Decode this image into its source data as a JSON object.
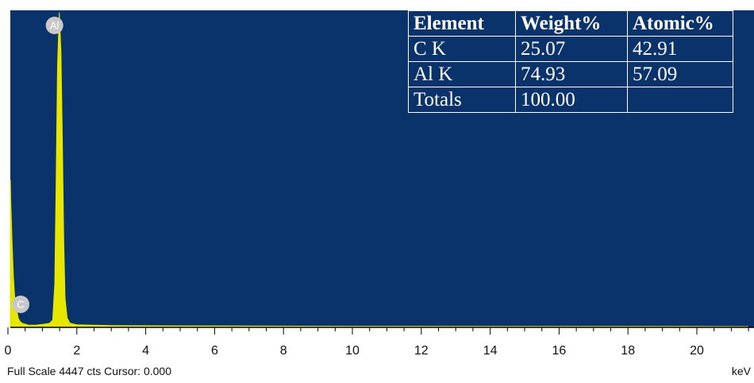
{
  "chart_data": {
    "type": "line",
    "title": "",
    "xlabel": "keV",
    "ylabel": "",
    "xlim": [
      0,
      21.5
    ],
    "ylim": [
      0,
      4447
    ],
    "x_ticks": [
      0,
      2,
      4,
      6,
      8,
      10,
      12,
      14,
      16,
      18,
      20
    ],
    "x_tick_labels": [
      "0",
      "2",
      "4",
      "6",
      "8",
      "10",
      "12",
      "14",
      "16",
      "18",
      "20"
    ],
    "series": [
      {
        "x": [
          0.0,
          0.04,
          0.08,
          0.12,
          0.16,
          0.2,
          0.24,
          0.28,
          0.3,
          0.34,
          0.38,
          0.42,
          0.5,
          0.6,
          0.8,
          1.0,
          1.2,
          1.3,
          1.36,
          1.4,
          1.44,
          1.49,
          1.54,
          1.58,
          1.62,
          1.66,
          1.72,
          1.8,
          2.0,
          3.0,
          5.0,
          10.0,
          15.0,
          20.0,
          21.5
        ],
        "values": [
          0,
          2080,
          1800,
          1200,
          700,
          380,
          250,
          170,
          120,
          80,
          60,
          45,
          35,
          20,
          20,
          30,
          45,
          90,
          600,
          2100,
          3700,
          4447,
          3900,
          2600,
          1200,
          400,
          120,
          50,
          25,
          15,
          10,
          5,
          3,
          2,
          0
        ]
      }
    ],
    "peaks": [
      {
        "label": "Al",
        "energy": 1.49
      },
      {
        "label": "C",
        "energy": 0.28
      }
    ]
  },
  "results_table": {
    "headers": [
      "Element",
      "Weight%",
      "Atomic%"
    ],
    "rows": [
      [
        "C K",
        "25.07",
        "42.91"
      ],
      [
        "Al K",
        "74.93",
        "57.09"
      ],
      [
        "Totals",
        "100.00",
        ""
      ]
    ]
  },
  "status_bar": {
    "left_text": "Full Scale 4447 cts Cursor: 0.000",
    "unit": "keV"
  },
  "colors": {
    "plot_background": "#0b336b",
    "spectrum": "#e6e600",
    "peak_marker": "#c8c8c8"
  }
}
